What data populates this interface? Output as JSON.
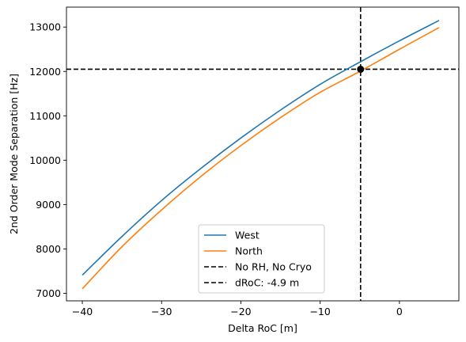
{
  "chart_data": {
    "type": "line",
    "title": "",
    "xlabel": "Delta RoC [m]",
    "ylabel": "2nd Order Mode Separation [Hz]",
    "xlim": [
      -42,
      7.5
    ],
    "ylim": [
      6830,
      13450
    ],
    "xticks": [
      -40,
      -30,
      -20,
      -10,
      0
    ],
    "yticks": [
      7000,
      8000,
      9000,
      10000,
      11000,
      12000,
      13000
    ],
    "xtick_labels": [
      "−40",
      "−30",
      "−20",
      "−10",
      "0"
    ],
    "ytick_labels": [
      "7000",
      "8000",
      "9000",
      "10000",
      "11000",
      "12000",
      "13000"
    ],
    "grid": false,
    "legend_position": "lower-center",
    "series": [
      {
        "name": "West",
        "color": "#1f77b4",
        "x": [
          -40,
          -35,
          -30,
          -25,
          -20,
          -15,
          -10,
          -5,
          0,
          5
        ],
        "y": [
          7410,
          8280,
          9090,
          9820,
          10500,
          11130,
          11710,
          12210,
          12690,
          13150
        ]
      },
      {
        "name": "North",
        "color": "#ff7f0e",
        "x": [
          -40,
          -35,
          -30,
          -25,
          -20,
          -15,
          -10,
          -5,
          0,
          5
        ],
        "y": [
          7100,
          8050,
          8880,
          9640,
          10330,
          10960,
          11530,
          12000,
          12500,
          12990
        ]
      }
    ],
    "reference_lines": [
      {
        "name": "No RH, No Cryo",
        "orientation": "horizontal",
        "value": 12050,
        "color": "#000000",
        "style": "dashed"
      },
      {
        "name": "dRoC: -4.9 m",
        "orientation": "vertical",
        "value": -4.9,
        "color": "#000000",
        "style": "dashed"
      }
    ],
    "marker": {
      "x": -4.9,
      "y": 12050,
      "color": "#000000"
    }
  }
}
